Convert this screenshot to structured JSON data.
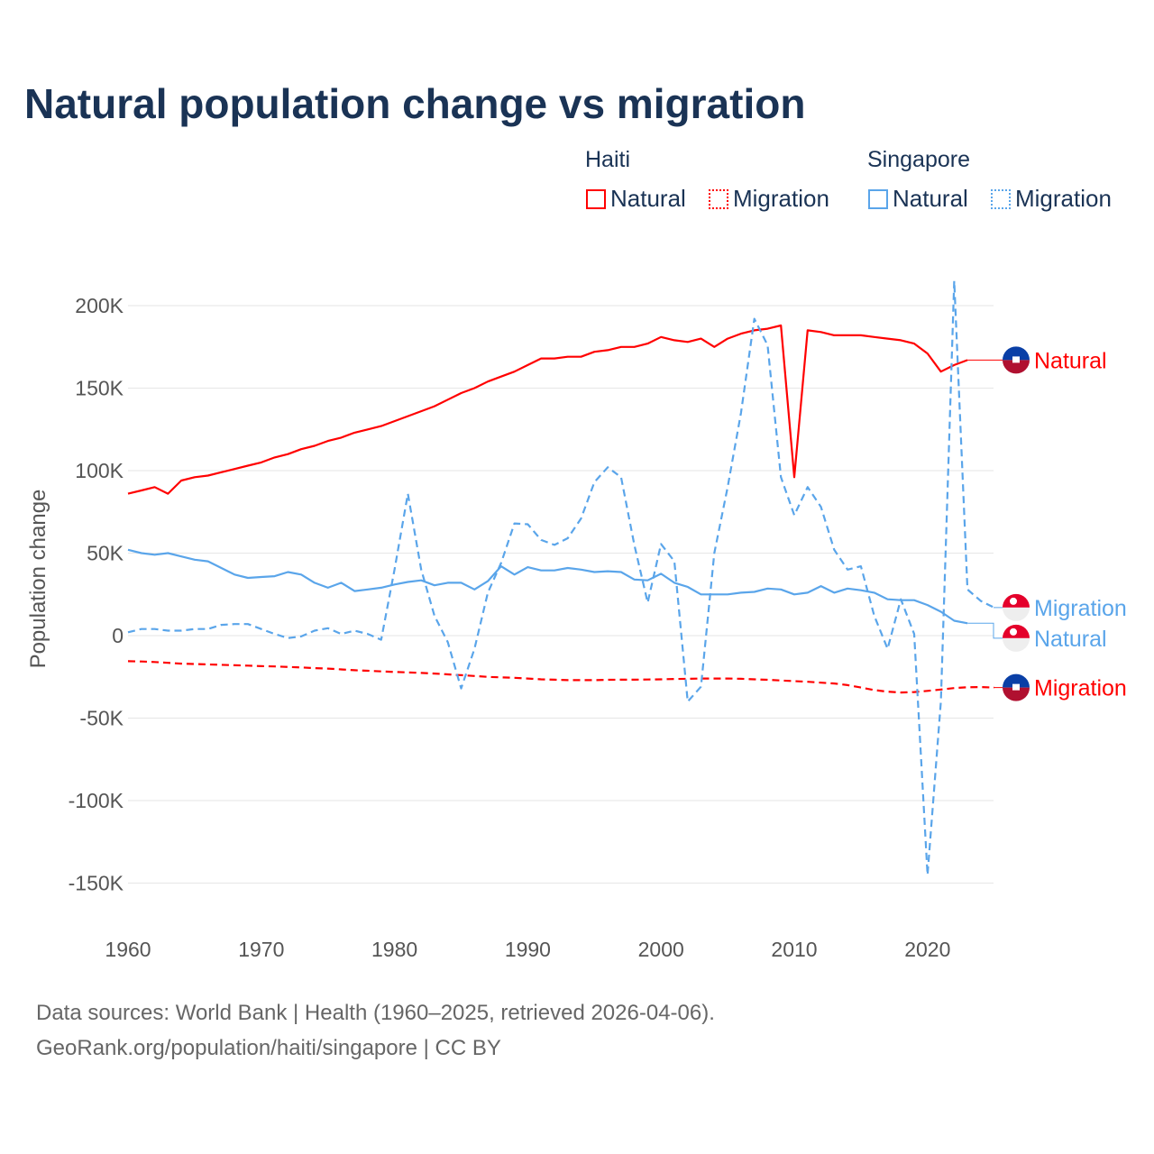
{
  "title": "Natural population change vs migration",
  "legend": {
    "groups": [
      {
        "name": "Haiti",
        "items": [
          "Natural",
          "Migration"
        ]
      },
      {
        "name": "Singapore",
        "items": [
          "Natural",
          "Migration"
        ]
      }
    ]
  },
  "footer": {
    "line1": "Data sources: World Bank | Health (1960–2025, retrieved 2026-04-06).",
    "line2": "GeoRank.org/population/haiti/singapore | CC BY"
  },
  "chart_data": {
    "type": "line",
    "title": "Natural population change vs migration",
    "xlabel": "",
    "ylabel": "Population change",
    "xlim": [
      1960,
      2025
    ],
    "ylim": [
      -150000,
      200000
    ],
    "x_ticks": [
      1960,
      1970,
      1980,
      1990,
      2000,
      2010,
      2020
    ],
    "x_tick_labels": [
      "1960",
      "1970",
      "1980",
      "1990",
      "2000",
      "2010",
      "2020"
    ],
    "y_ticks": [
      200000,
      150000,
      100000,
      50000,
      0,
      -50000,
      -100000,
      -150000
    ],
    "y_tick_labels": [
      "200K",
      "150K",
      "100K",
      "50K",
      "0",
      "-50K",
      "-100K",
      "-150K"
    ],
    "grid": true,
    "colors": {
      "haiti": "#ff0000",
      "singapore": "#5aa5ea"
    },
    "series": [
      {
        "name": "Haiti Natural",
        "country": "haiti",
        "style": "solid",
        "end_label": "Natural",
        "start_year": 1960,
        "values": [
          86000,
          88000,
          90000,
          86000,
          94000,
          96000,
          97000,
          99000,
          101000,
          103000,
          105000,
          108000,
          110000,
          113000,
          115000,
          118000,
          120000,
          123000,
          125000,
          127000,
          130000,
          133000,
          136000,
          139000,
          143000,
          147000,
          150000,
          154000,
          157000,
          160000,
          164000,
          168000,
          168000,
          169000,
          169000,
          172000,
          173000,
          175000,
          175000,
          177000,
          181000,
          179000,
          178000,
          180000,
          175000,
          180000,
          183000,
          185000,
          186000,
          188000,
          96000,
          185000,
          184000,
          182000,
          182000,
          182000,
          181000,
          180000,
          179000,
          177000,
          171000,
          160000,
          164000,
          167000
        ]
      },
      {
        "name": "Haiti Migration",
        "country": "haiti",
        "style": "dashed",
        "end_label": "Migration",
        "start_year": 1960,
        "values": [
          -15500,
          -15700,
          -16000,
          -16500,
          -17000,
          -17200,
          -17500,
          -17700,
          -18000,
          -18200,
          -18500,
          -18700,
          -19000,
          -19300,
          -19700,
          -20000,
          -20500,
          -21000,
          -21300,
          -21700,
          -22000,
          -22300,
          -22600,
          -23000,
          -23500,
          -24000,
          -24500,
          -25000,
          -25300,
          -25600,
          -26000,
          -26500,
          -26700,
          -27000,
          -27000,
          -27000,
          -26800,
          -26700,
          -26700,
          -26600,
          -26500,
          -26300,
          -26200,
          -26000,
          -26000,
          -26000,
          -26200,
          -26500,
          -26800,
          -27200,
          -27600,
          -28000,
          -28500,
          -29000,
          -30000,
          -31500,
          -33000,
          -34000,
          -34500,
          -34200,
          -33500,
          -32700,
          -31800,
          -31300,
          -31200,
          -31500
        ]
      },
      {
        "name": "Singapore Natural",
        "country": "singapore",
        "style": "solid",
        "end_label": "Natural",
        "start_year": 1960,
        "values": [
          52000,
          50000,
          49000,
          50000,
          48000,
          46000,
          45000,
          41000,
          37000,
          35000,
          35500,
          36000,
          38500,
          37000,
          32000,
          29000,
          32000,
          27000,
          28000,
          29000,
          31000,
          32500,
          33500,
          30500,
          32000,
          32000,
          28000,
          33000,
          42000,
          37000,
          41500,
          39500,
          39500,
          41000,
          40000,
          38500,
          39000,
          38500,
          34000,
          33500,
          37500,
          32000,
          29500,
          25000,
          25000,
          25000,
          26000,
          26500,
          28500,
          28000,
          25000,
          26000,
          30000,
          26000,
          28500,
          27500,
          26000,
          22000,
          21500,
          21500,
          18500,
          14500,
          9000,
          7500
        ]
      },
      {
        "name": "Singapore Migration",
        "country": "singapore",
        "style": "dashed",
        "end_label": "Migration",
        "start_year": 1960,
        "values": [
          2000,
          4000,
          4000,
          3000,
          3000,
          4000,
          4000,
          6500,
          7000,
          7000,
          4000,
          1000,
          -1500,
          -500,
          3000,
          4500,
          1000,
          3000,
          1000,
          -2500,
          40000,
          86000,
          40000,
          12000,
          -4000,
          -32000,
          -8000,
          26000,
          44000,
          68000,
          67500,
          58000,
          55000,
          59000,
          71000,
          93000,
          102000,
          96000,
          55000,
          20000,
          55500,
          45000,
          -40000,
          -31000,
          50000,
          90000,
          135000,
          192000,
          176000,
          96000,
          73000,
          90000,
          78000,
          52000,
          40000,
          42000,
          12000,
          -8000,
          22000,
          1000,
          -145000,
          -40000,
          215000,
          28000,
          21000,
          17000
        ]
      }
    ]
  }
}
